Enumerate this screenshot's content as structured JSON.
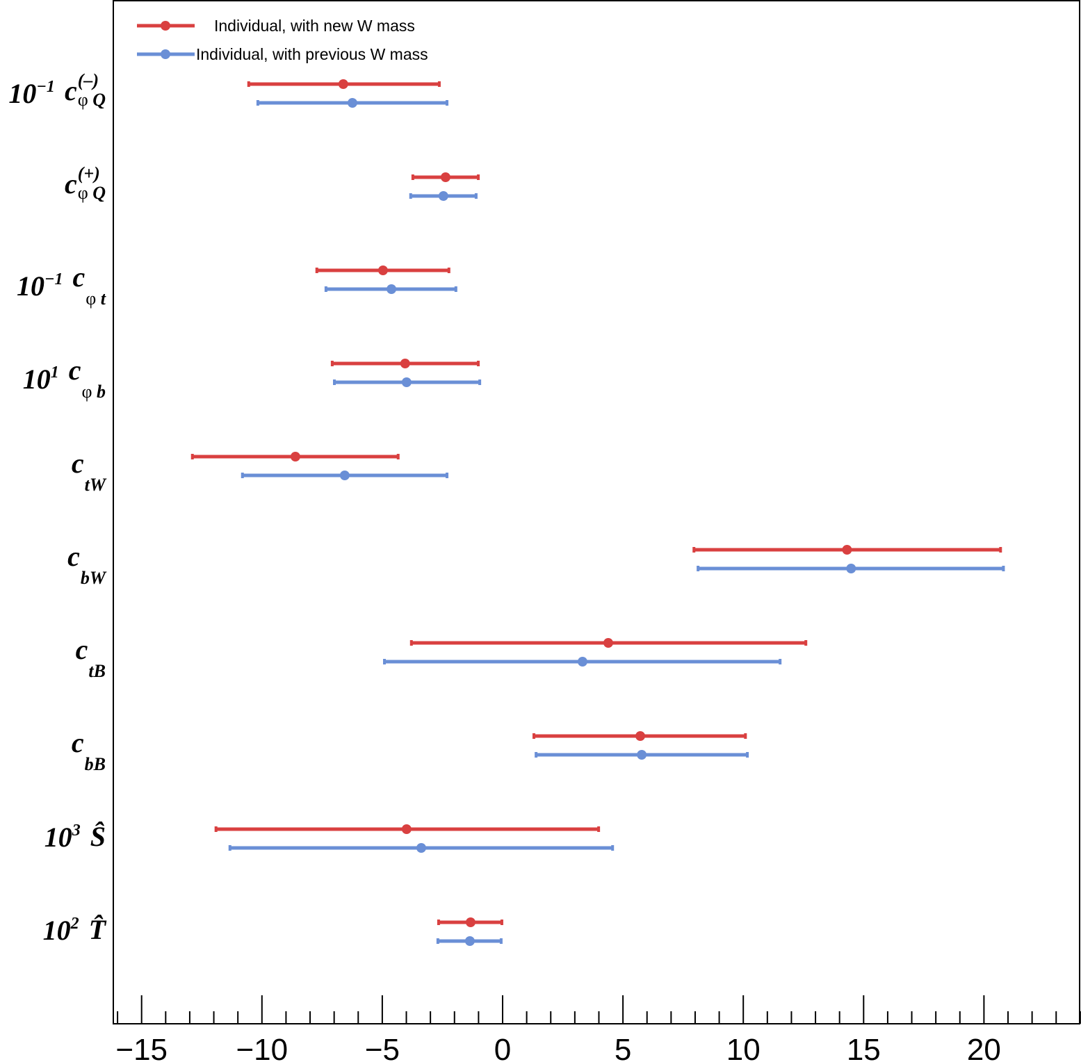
{
  "chart_data": {
    "type": "errorbar",
    "title": "",
    "xlabel": "",
    "ylabel": "",
    "xlim": [
      -16.2,
      24.0
    ],
    "xticks_major": [
      -15,
      -10,
      -5,
      0,
      5,
      10,
      15,
      20
    ],
    "xtick_labels": [
      "−15",
      "−10",
      "−5",
      "0",
      "5",
      "10",
      "15",
      "20"
    ],
    "minor_tick_step": 1,
    "grid": false,
    "legend_position": "top-left",
    "series": [
      {
        "name": "Individual, with new W mass",
        "color": "#d94040"
      },
      {
        "name": "Individual, with previous W mass",
        "color": "#6a8fd6"
      }
    ],
    "categories": [
      {
        "prefix": "10",
        "exp": "−1",
        "symbol": "c",
        "sup": "(–)",
        "sub_phi": "φ",
        "sub": " Q"
      },
      {
        "prefix": "",
        "exp": "",
        "symbol": "c",
        "sup": "(+)",
        "sub_phi": "φ",
        "sub": " Q"
      },
      {
        "prefix": "10",
        "exp": "−1",
        "symbol": "c",
        "sup": "",
        "sub_phi": "φ",
        "sub": " t"
      },
      {
        "prefix": "10",
        "exp": "1",
        "symbol": "c",
        "sup": "",
        "sub_phi": "φ",
        "sub": " b"
      },
      {
        "prefix": "",
        "exp": "",
        "symbol": "c",
        "sup": "",
        "sub_phi": "",
        "sub": "tW"
      },
      {
        "prefix": "",
        "exp": "",
        "symbol": "c",
        "sup": "",
        "sub_phi": "",
        "sub": "bW"
      },
      {
        "prefix": "",
        "exp": "",
        "symbol": "c",
        "sup": "",
        "sub_phi": "",
        "sub": "tB"
      },
      {
        "prefix": "",
        "exp": "",
        "symbol": "c",
        "sup": "",
        "sub_phi": "",
        "sub": "bB"
      },
      {
        "prefix": "10",
        "exp": "3",
        "symbol": "Ŝ",
        "sup": "",
        "sub_phi": "",
        "sub": ""
      },
      {
        "prefix": "10",
        "exp": "2",
        "symbol": "T̂",
        "sup": "",
        "sub_phi": "",
        "sub": ""
      }
    ],
    "data": {
      "new": [
        {
          "center": -6.62,
          "low": -10.55,
          "high": -2.63
        },
        {
          "center": -2.37,
          "low": -3.73,
          "high": -1.01
        },
        {
          "center": -4.97,
          "low": -7.72,
          "high": -2.23
        },
        {
          "center": -4.05,
          "low": -7.08,
          "high": -1.01
        },
        {
          "center": -8.61,
          "low": -12.89,
          "high": -4.34
        },
        {
          "center": 14.31,
          "low": 7.95,
          "high": 20.69
        },
        {
          "center": 4.39,
          "low": -3.79,
          "high": 12.6
        },
        {
          "center": 5.72,
          "low": 1.3,
          "high": 10.09
        },
        {
          "center": -3.99,
          "low": -11.91,
          "high": 3.99
        },
        {
          "center": -1.33,
          "low": -2.66,
          "high": -0.03
        }
      ],
      "previous": [
        {
          "center": -6.24,
          "low": -10.17,
          "high": -2.31
        },
        {
          "center": -2.46,
          "low": -3.82,
          "high": -1.1
        },
        {
          "center": -4.62,
          "low": -7.34,
          "high": -1.94
        },
        {
          "center": -3.99,
          "low": -6.99,
          "high": -0.95
        },
        {
          "center": -6.56,
          "low": -10.81,
          "high": -2.31
        },
        {
          "center": 14.48,
          "low": 8.12,
          "high": 20.81
        },
        {
          "center": 3.32,
          "low": -4.91,
          "high": 11.53
        },
        {
          "center": 5.78,
          "low": 1.39,
          "high": 10.17
        },
        {
          "center": -3.38,
          "low": -11.33,
          "high": 4.57
        },
        {
          "center": -1.36,
          "low": -2.69,
          "high": -0.06
        }
      ]
    }
  }
}
